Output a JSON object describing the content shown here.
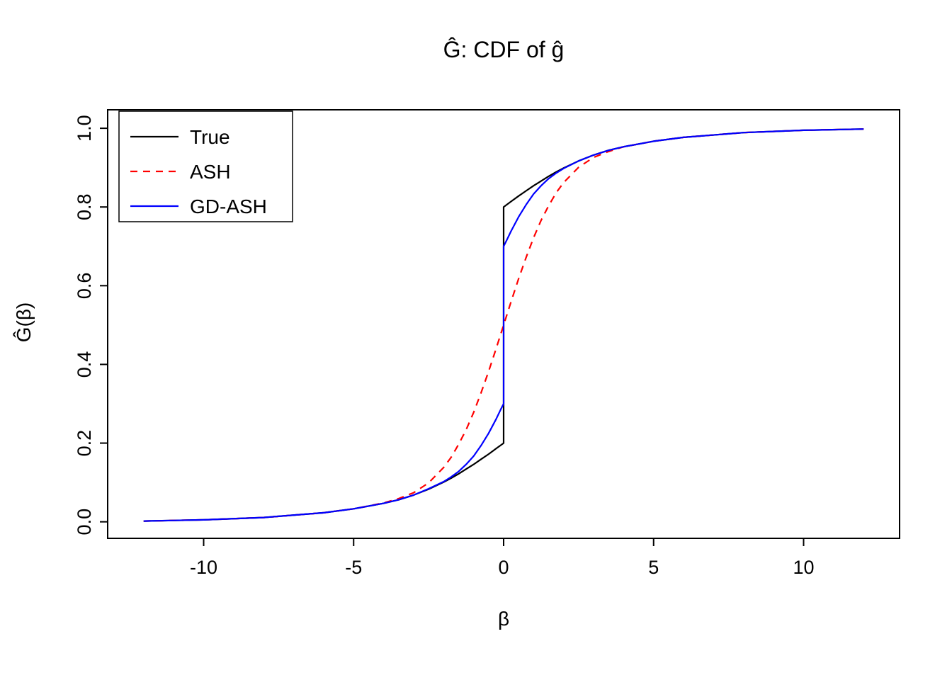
{
  "chart_data": {
    "type": "line",
    "title": "Ĝ: CDF of ĝ",
    "xlabel": "β",
    "ylabel": "Ĝ(β)",
    "xlim": [
      -13.2,
      13.2
    ],
    "ylim": [
      -0.042,
      1.047
    ],
    "grid": false,
    "xticks": [
      {
        "value": -10,
        "label": "-10"
      },
      {
        "value": -5,
        "label": "-5"
      },
      {
        "value": 0,
        "label": "0"
      },
      {
        "value": 5,
        "label": "5"
      },
      {
        "value": 10,
        "label": "10"
      }
    ],
    "yticks": [
      {
        "value": 0.0,
        "label": "0.0"
      },
      {
        "value": 0.2,
        "label": "0.2"
      },
      {
        "value": 0.4,
        "label": "0.4"
      },
      {
        "value": 0.6,
        "label": "0.6"
      },
      {
        "value": 0.8,
        "label": "0.8"
      },
      {
        "value": 1.0,
        "label": "1.0"
      }
    ],
    "legend": {
      "position": "top-left",
      "border": true,
      "entries": [
        "True",
        "ASH",
        "GD-ASH"
      ]
    },
    "series": [
      {
        "name": "True",
        "color": "#000000",
        "dash": null,
        "points": [
          [
            -12,
            0.002
          ],
          [
            -10,
            0.005
          ],
          [
            -8,
            0.011
          ],
          [
            -6,
            0.023
          ],
          [
            -5,
            0.033
          ],
          [
            -4,
            0.047
          ],
          [
            -3.5,
            0.056
          ],
          [
            -3,
            0.068
          ],
          [
            -2.5,
            0.083
          ],
          [
            -2,
            0.101
          ],
          [
            -1.75,
            0.111
          ],
          [
            -1.5,
            0.122
          ],
          [
            -1.25,
            0.134
          ],
          [
            -1,
            0.146
          ],
          [
            -0.75,
            0.159
          ],
          [
            -0.5,
            0.172
          ],
          [
            -0.25,
            0.186
          ],
          [
            0,
            0.2
          ],
          [
            0,
            0.8
          ],
          [
            0.25,
            0.814
          ],
          [
            0.5,
            0.828
          ],
          [
            0.75,
            0.841
          ],
          [
            1,
            0.854
          ],
          [
            1.25,
            0.866
          ],
          [
            1.5,
            0.878
          ],
          [
            1.75,
            0.889
          ],
          [
            2,
            0.899
          ],
          [
            2.5,
            0.917
          ],
          [
            3,
            0.932
          ],
          [
            3.5,
            0.944
          ],
          [
            4,
            0.953
          ],
          [
            5,
            0.967
          ],
          [
            6,
            0.977
          ],
          [
            8,
            0.989
          ],
          [
            10,
            0.995
          ],
          [
            12,
            0.998
          ]
        ]
      },
      {
        "name": "ASH",
        "color": "#FF0000",
        "dash": "10 8",
        "points": [
          [
            -12,
            0.002
          ],
          [
            -10,
            0.005
          ],
          [
            -8,
            0.011
          ],
          [
            -6,
            0.023
          ],
          [
            -5,
            0.033
          ],
          [
            -4,
            0.048
          ],
          [
            -3.5,
            0.059
          ],
          [
            -3,
            0.074
          ],
          [
            -2.5,
            0.099
          ],
          [
            -2,
            0.138
          ],
          [
            -1.75,
            0.164
          ],
          [
            -1.5,
            0.197
          ],
          [
            -1.25,
            0.234
          ],
          [
            -1,
            0.278
          ],
          [
            -0.75,
            0.328
          ],
          [
            -0.5,
            0.382
          ],
          [
            -0.25,
            0.44
          ],
          [
            0,
            0.5
          ],
          [
            0.25,
            0.56
          ],
          [
            0.5,
            0.618
          ],
          [
            0.75,
            0.672
          ],
          [
            1,
            0.722
          ],
          [
            1.25,
            0.766
          ],
          [
            1.5,
            0.803
          ],
          [
            1.75,
            0.836
          ],
          [
            2,
            0.862
          ],
          [
            2.5,
            0.901
          ],
          [
            3,
            0.926
          ],
          [
            3.5,
            0.941
          ],
          [
            4,
            0.953
          ],
          [
            5,
            0.967
          ],
          [
            6,
            0.977
          ],
          [
            8,
            0.989
          ],
          [
            10,
            0.995
          ],
          [
            12,
            0.998
          ]
        ]
      },
      {
        "name": "GD-ASH",
        "color": "#0000FF",
        "dash": null,
        "points": [
          [
            -12,
            0.002
          ],
          [
            -10,
            0.005
          ],
          [
            -8,
            0.011
          ],
          [
            -6,
            0.023
          ],
          [
            -5,
            0.033
          ],
          [
            -4,
            0.047
          ],
          [
            -3.5,
            0.056
          ],
          [
            -3,
            0.068
          ],
          [
            -2.5,
            0.084
          ],
          [
            -2,
            0.102
          ],
          [
            -1.75,
            0.114
          ],
          [
            -1.5,
            0.128
          ],
          [
            -1.25,
            0.146
          ],
          [
            -1,
            0.167
          ],
          [
            -0.75,
            0.194
          ],
          [
            -0.5,
            0.225
          ],
          [
            -0.25,
            0.261
          ],
          [
            -0.1,
            0.285
          ],
          [
            0,
            0.3
          ],
          [
            0,
            0.7
          ],
          [
            0.1,
            0.715
          ],
          [
            0.25,
            0.739
          ],
          [
            0.5,
            0.775
          ],
          [
            0.75,
            0.806
          ],
          [
            1,
            0.833
          ],
          [
            1.25,
            0.854
          ],
          [
            1.5,
            0.872
          ],
          [
            1.75,
            0.886
          ],
          [
            2,
            0.898
          ],
          [
            2.5,
            0.917
          ],
          [
            3,
            0.932
          ],
          [
            3.5,
            0.944
          ],
          [
            4,
            0.953
          ],
          [
            5,
            0.967
          ],
          [
            6,
            0.977
          ],
          [
            8,
            0.989
          ],
          [
            10,
            0.995
          ],
          [
            12,
            0.998
          ]
        ]
      }
    ]
  }
}
